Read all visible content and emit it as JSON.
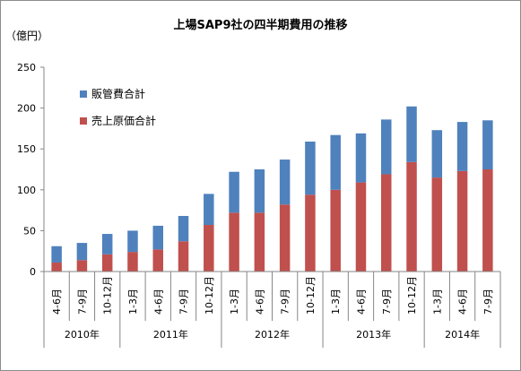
{
  "chart_data": {
    "type": "bar",
    "stacked": true,
    "title": "上場SAP9社の四半期費用の推移",
    "ylabel": "（億円）",
    "ylim": [
      0,
      250
    ],
    "yticks": [
      0,
      50,
      100,
      150,
      200,
      250
    ],
    "grid": false,
    "legend_position": "upper-left",
    "categories": [
      "4-6月",
      "7-9月",
      "10-12月",
      "1-3月",
      "4-6月",
      "7-9月",
      "10-12月",
      "1-3月",
      "4-6月",
      "7-9月",
      "10-12月",
      "1-3月",
      "4-6月",
      "7-9月",
      "10-12月",
      "1-3月",
      "4-6月",
      "7-9月"
    ],
    "groups": [
      {
        "label": "2010年",
        "count": 3
      },
      {
        "label": "2011年",
        "count": 4
      },
      {
        "label": "2012年",
        "count": 4
      },
      {
        "label": "2013年",
        "count": 4
      },
      {
        "label": "2014年",
        "count": 3
      }
    ],
    "series": [
      {
        "name": "売上原価合計",
        "color": "#c0504d",
        "values": [
          11,
          14,
          21,
          24,
          27,
          37,
          57,
          72,
          72,
          82,
          94,
          100,
          109,
          119,
          134,
          115,
          123,
          125
        ]
      },
      {
        "name": "販管費合計",
        "color": "#4f81bd",
        "values": [
          20,
          21,
          25,
          26,
          29,
          31,
          38,
          50,
          53,
          55,
          65,
          67,
          60,
          67,
          68,
          58,
          60,
          60
        ]
      }
    ]
  }
}
